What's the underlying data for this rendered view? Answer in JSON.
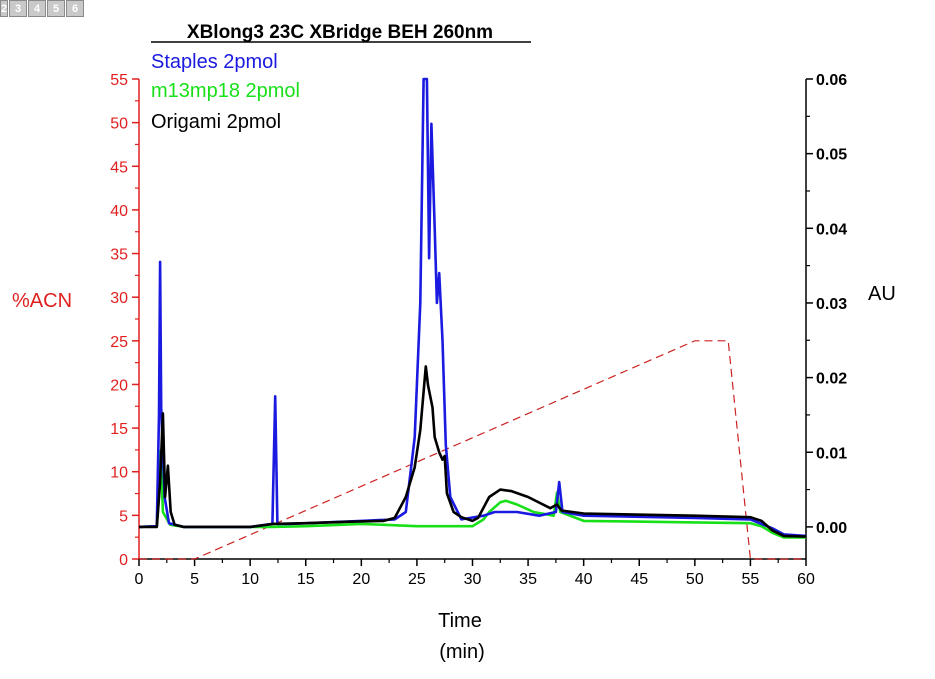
{
  "worksheet_tabs": [
    "2",
    "3",
    "4",
    "5",
    "6"
  ],
  "chart_data": {
    "type": "line",
    "title": "XBlong3 23C XBridge BEH 260nm",
    "xlabel": "Time",
    "xlabel_unit": "(min)",
    "ylabel_left": "%ACN",
    "ylabel_right": "AU",
    "xlim": [
      0,
      60
    ],
    "ylim_left": [
      0,
      55
    ],
    "ylim_right": [
      -0.0043,
      0.06
    ],
    "x_ticks": [
      "0",
      "5",
      "10",
      "15",
      "20",
      "25",
      "30",
      "35",
      "40",
      "45",
      "50",
      "55",
      "60"
    ],
    "y_left_ticks": [
      "0",
      "5",
      "10",
      "15",
      "20",
      "25",
      "30",
      "35",
      "40",
      "45",
      "50",
      "55"
    ],
    "y_right_ticks": [
      "0.00",
      "0.01",
      "0.02",
      "0.03",
      "0.04",
      "0.05",
      "0.06"
    ],
    "grid": false,
    "legend_placement": "top-left",
    "colors": {
      "left_axis": "#e02020",
      "gradient": "#cc2222",
      "staples": "#1a1ae0",
      "m13": "#18e018",
      "origami": "#000000"
    },
    "gradient": {
      "axis": "left",
      "points": [
        [
          0,
          0
        ],
        [
          5,
          0
        ],
        [
          50,
          25
        ],
        [
          53,
          25
        ],
        [
          55,
          0
        ],
        [
          60,
          0
        ]
      ]
    },
    "series": [
      {
        "name": "Staples 2pmol",
        "color": "#1a1ae0",
        "axis": "right",
        "points": [
          [
            0,
            0.0
          ],
          [
            1.6,
            0.0001
          ],
          [
            1.8,
            0.015
          ],
          [
            1.9,
            0.0355
          ],
          [
            2.0,
            0.016
          ],
          [
            2.3,
            0.004
          ],
          [
            2.7,
            0.0005
          ],
          [
            4,
            0.0
          ],
          [
            10,
            0.0
          ],
          [
            12,
            0.0004
          ],
          [
            12.25,
            0.0175
          ],
          [
            12.45,
            0.0004
          ],
          [
            13.5,
            0.0004
          ],
          [
            20,
            0.0008
          ],
          [
            23,
            0.001
          ],
          [
            24,
            0.002
          ],
          [
            24.8,
            0.012
          ],
          [
            25.3,
            0.03
          ],
          [
            25.6,
            0.06
          ],
          [
            25.9,
            0.06
          ],
          [
            26.1,
            0.036
          ],
          [
            26.3,
            0.054
          ],
          [
            26.6,
            0.04
          ],
          [
            26.8,
            0.03
          ],
          [
            27.0,
            0.034
          ],
          [
            27.3,
            0.025
          ],
          [
            27.6,
            0.011
          ],
          [
            28,
            0.004
          ],
          [
            29,
            0.001
          ],
          [
            31,
            0.0015
          ],
          [
            32,
            0.002
          ],
          [
            33,
            0.002
          ],
          [
            34,
            0.002
          ],
          [
            36,
            0.0015
          ],
          [
            37.5,
            0.002
          ],
          [
            37.8,
            0.006
          ],
          [
            38.1,
            0.002
          ],
          [
            40,
            0.0015
          ],
          [
            50,
            0.0012
          ],
          [
            55,
            0.001
          ],
          [
            57,
            -0.0002
          ],
          [
            58,
            -0.001
          ],
          [
            60,
            -0.0012
          ]
        ]
      },
      {
        "name": "m13mp18 2pmol",
        "color": "#18e018",
        "axis": "right",
        "points": [
          [
            0,
            0.0
          ],
          [
            1.6,
            0.0001
          ],
          [
            1.8,
            0.004
          ],
          [
            1.95,
            0.0102
          ],
          [
            2.15,
            0.002
          ],
          [
            2.8,
            0.0003
          ],
          [
            4,
            0.0
          ],
          [
            12,
            0.0
          ],
          [
            15,
            0.0001
          ],
          [
            20,
            0.0004
          ],
          [
            25,
            0.0001
          ],
          [
            28,
            0.0001
          ],
          [
            30,
            0.0001
          ],
          [
            31,
            0.001
          ],
          [
            31.5,
            0.002
          ],
          [
            32.5,
            0.0033
          ],
          [
            33,
            0.0035
          ],
          [
            34,
            0.003
          ],
          [
            35.5,
            0.002
          ],
          [
            37.3,
            0.0015
          ],
          [
            37.6,
            0.0046
          ],
          [
            37.9,
            0.002
          ],
          [
            40,
            0.0008
          ],
          [
            50,
            0.0006
          ],
          [
            55,
            0.0005
          ],
          [
            56,
            0.0001
          ],
          [
            57,
            -0.0008
          ],
          [
            58,
            -0.0014
          ],
          [
            60,
            -0.0014
          ]
        ]
      },
      {
        "name": "Origami 2pmol",
        "color": "#000000",
        "axis": "right",
        "points": [
          [
            0,
            0.0
          ],
          [
            1.6,
            0.0
          ],
          [
            1.9,
            0.006
          ],
          [
            2.15,
            0.0152
          ],
          [
            2.35,
            0.004
          ],
          [
            2.6,
            0.0082
          ],
          [
            2.85,
            0.002
          ],
          [
            3.2,
            0.0003
          ],
          [
            4,
            0.0
          ],
          [
            10,
            0.0
          ],
          [
            12,
            0.0004
          ],
          [
            15,
            0.0005
          ],
          [
            19,
            0.0007
          ],
          [
            22,
            0.0008
          ],
          [
            23,
            0.0012
          ],
          [
            24,
            0.004
          ],
          [
            24.8,
            0.008
          ],
          [
            25.3,
            0.013
          ],
          [
            25.8,
            0.0215
          ],
          [
            26.0,
            0.019
          ],
          [
            26.4,
            0.016
          ],
          [
            26.6,
            0.012
          ],
          [
            27.0,
            0.01
          ],
          [
            27.3,
            0.009
          ],
          [
            27.5,
            0.0095
          ],
          [
            27.7,
            0.0045
          ],
          [
            28.3,
            0.002
          ],
          [
            29,
            0.0013
          ],
          [
            30,
            0.0008
          ],
          [
            30.5,
            0.0012
          ],
          [
            31.5,
            0.004
          ],
          [
            32.5,
            0.005
          ],
          [
            33.5,
            0.0048
          ],
          [
            35,
            0.004
          ],
          [
            37,
            0.0025
          ],
          [
            37.6,
            0.003
          ],
          [
            38,
            0.0022
          ],
          [
            40,
            0.0018
          ],
          [
            50,
            0.0015
          ],
          [
            55,
            0.0013
          ],
          [
            56,
            0.0008
          ],
          [
            57,
            -0.0005
          ],
          [
            58,
            -0.0012
          ],
          [
            60,
            -0.0013
          ]
        ]
      }
    ]
  }
}
